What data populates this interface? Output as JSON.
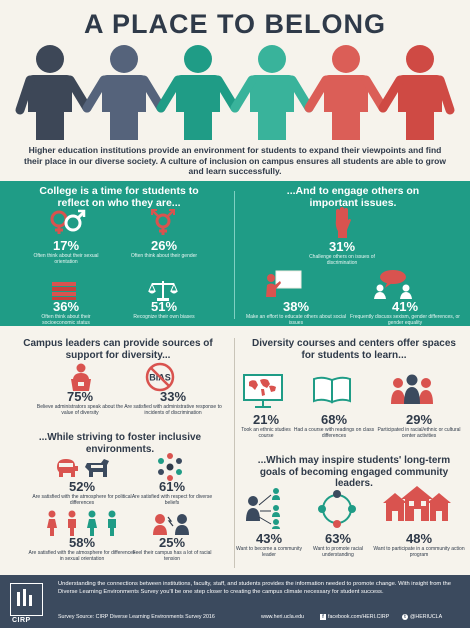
{
  "title": "A PLACE TO BELONG",
  "intro": "Higher education institutions provide an environment for students to expand their viewpoints and find their place in our diverse society. A culture of inclusion on campus ensures all students are able to grow and learn successfully.",
  "people_colors": [
    "#3d4757",
    "#55637b",
    "#1f9c86",
    "#39b39b",
    "#db5e57",
    "#cf4a44"
  ],
  "section1": {
    "heading": "College is a time for students to reflect on who they are...",
    "stats": [
      {
        "pct": "17%",
        "desc": "Often think about their sexual orientation",
        "icon": "gender-symbols-icon"
      },
      {
        "pct": "26%",
        "desc": "Often think about their gender",
        "icon": "transgender-symbol-icon"
      },
      {
        "pct": "36%",
        "desc": "Often think about their socioeconomic status",
        "icon": "money-stack-icon"
      },
      {
        "pct": "51%",
        "desc": "Recognize their own biases",
        "icon": "balance-scale-icon"
      }
    ]
  },
  "section2": {
    "heading": "...And to engage others on important issues.",
    "stats": [
      {
        "pct": "31%",
        "desc": "Challenge others on issues of discrimination",
        "icon": "raised-hand-icon"
      },
      {
        "pct": "38%",
        "desc": "Make an effort to educate others about social issues",
        "icon": "teacher-board-icon"
      },
      {
        "pct": "41%",
        "desc": "Frequently discuss sexism, gender differences, or gender equality",
        "icon": "discussion-icon"
      }
    ]
  },
  "section3": {
    "heading": "Campus leaders can provide sources of support for diversity...",
    "stats": [
      {
        "pct": "75%",
        "desc": "Believe administrators speak about the value of diversity",
        "icon": "speaker-podium-icon"
      },
      {
        "pct": "33%",
        "desc": "Are satisfied with administrative response to incidents of discrimination",
        "icon": "no-bias-icon",
        "bias": "BIAS"
      }
    ]
  },
  "section4": {
    "heading": "...While striving to foster inclusive environments.",
    "stats": [
      {
        "pct": "52%",
        "desc": "Are satisfied with the atmosphere for political differences",
        "icon": "political-animals-icon"
      },
      {
        "pct": "61%",
        "desc": "Are satisfied with respect for diverse beliefs",
        "icon": "diverse-circle-icon"
      },
      {
        "pct": "58%",
        "desc": "Are satisfied with the atmosphere for differences in sexual orientation",
        "icon": "couples-icon"
      },
      {
        "pct": "25%",
        "desc": "Feel their campus has a lot of racial tension",
        "icon": "tension-faces-icon"
      }
    ]
  },
  "section5": {
    "heading": "Diversity courses and centers offer spaces for students to learn...",
    "stats": [
      {
        "pct": "21%",
        "desc": "Took an ethnic studies course",
        "icon": "world-map-icon"
      },
      {
        "pct": "68%",
        "desc": "Had a course with readings on class differences",
        "icon": "open-book-icon"
      },
      {
        "pct": "29%",
        "desc": "Participated in racial/ethnic or cultural center activities",
        "icon": "group-people-icon"
      }
    ]
  },
  "section6": {
    "heading": "...Which may inspire students' long-term goals of becoming engaged community leaders.",
    "stats": [
      {
        "pct": "43%",
        "desc": "Want to become a community leader",
        "icon": "leader-network-icon"
      },
      {
        "pct": "63%",
        "desc": "Want to promote racial understanding",
        "icon": "connected-people-icon"
      },
      {
        "pct": "48%",
        "desc": "Want to participate in a community action program",
        "icon": "houses-icon"
      }
    ]
  },
  "footer": {
    "logo_text": "CIRP",
    "text": "Understanding the connections between institutions, faculty, staff, and students provides the information needed to promote change. With insight from the Diverse Learning Environments Survey you'll be one step closer to creating the campus climate necessary for student success.",
    "source": "Survey Source: CIRP Diverse Learning Environments Survey 2016",
    "website": "www.heri.ucla.edu",
    "facebook": "facebook.com/HERI.CIRP",
    "twitter": "@HERIUCLA"
  }
}
